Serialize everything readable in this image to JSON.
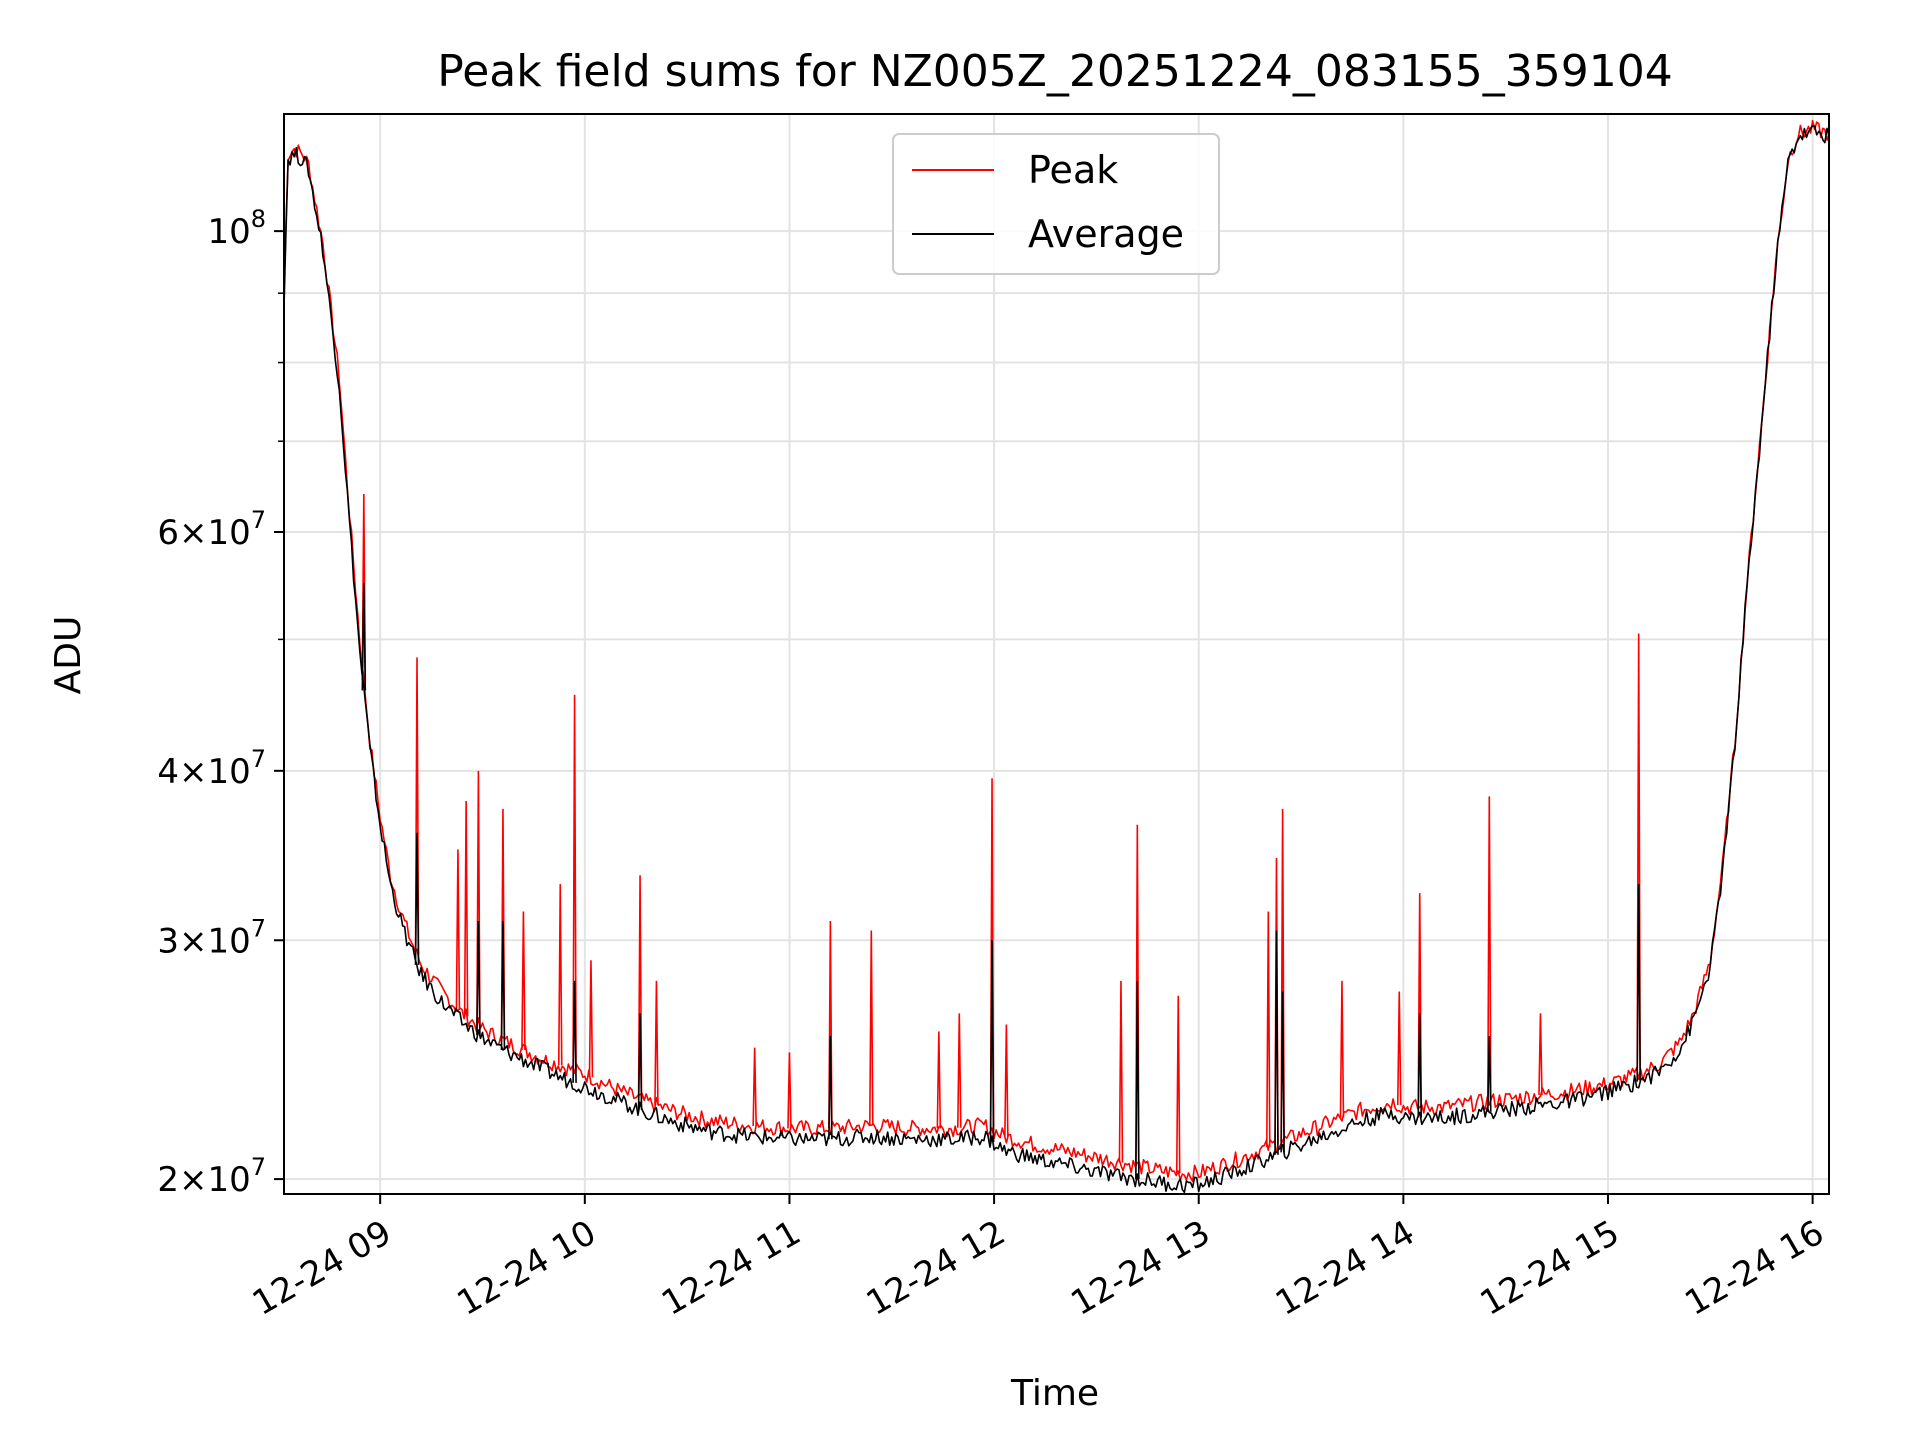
{
  "chart_data": {
    "type": "line",
    "title": "Peak field sums for NZ005Z_20251224_083155_359104",
    "xlabel": "Time",
    "ylabel": "ADU",
    "yscale": "log",
    "ylim": [
      19500000,
      122000000
    ],
    "xlim_hours": [
      8.53,
      16.08
    ],
    "grid": true,
    "legend_position": "top-center",
    "x_ticks": [
      {
        "value": 9,
        "label": "12-24 09"
      },
      {
        "value": 10,
        "label": "12-24 10"
      },
      {
        "value": 11,
        "label": "12-24 11"
      },
      {
        "value": 12,
        "label": "12-24 12"
      },
      {
        "value": 13,
        "label": "12-24 13"
      },
      {
        "value": 14,
        "label": "12-24 14"
      },
      {
        "value": 15,
        "label": "12-24 15"
      },
      {
        "value": 16,
        "label": "12-24 16"
      }
    ],
    "y_ticks": [
      {
        "value": 20000000,
        "base": "2",
        "exp": "7"
      },
      {
        "value": 30000000,
        "base": "3",
        "exp": "7"
      },
      {
        "value": 40000000,
        "base": "4",
        "exp": "7"
      },
      {
        "value": 60000000,
        "base": "6",
        "exp": "7"
      },
      {
        "value": 100000000,
        "base": "",
        "exp": "8"
      }
    ],
    "y_minor_ticks": [
      50000000,
      70000000,
      80000000,
      90000000
    ],
    "series": [
      {
        "name": "Peak",
        "color": "#ff0000",
        "x_hours": [
          8.53,
          8.55,
          8.58,
          8.62,
          8.65,
          8.72,
          8.8,
          8.85,
          8.9,
          8.95,
          9.0,
          9.05,
          9.1,
          9.15,
          9.2,
          9.3,
          9.4,
          9.5,
          9.6,
          9.7,
          9.8,
          9.9,
          10.0,
          10.15,
          10.3,
          10.45,
          10.6,
          10.8,
          11.0,
          11.2,
          11.4,
          11.6,
          11.8,
          11.95,
          12.05,
          12.2,
          12.4,
          12.6,
          12.8,
          12.9,
          13.0,
          13.2,
          13.4,
          13.6,
          13.8,
          13.95,
          14.0,
          14.2,
          14.4,
          14.6,
          14.8,
          15.0,
          15.15,
          15.25,
          15.35,
          15.42,
          15.5,
          15.56,
          15.62,
          15.68,
          15.75,
          15.82,
          15.88,
          15.93,
          16.0,
          16.08
        ],
        "y": [
          90000000,
          114000000,
          115000000,
          114000000,
          112000000,
          98000000,
          78000000,
          62000000,
          50000000,
          42000000,
          37000000,
          33500000,
          31500000,
          30000000,
          28800000,
          27500000,
          26500000,
          25800000,
          25300000,
          24900000,
          24500000,
          24200000,
          23900000,
          23300000,
          22800000,
          22400000,
          22100000,
          21900000,
          21800000,
          21800000,
          21900000,
          21800000,
          21800000,
          21900000,
          21500000,
          21200000,
          20900000,
          20600000,
          20300000,
          20200000,
          20200000,
          20700000,
          21300000,
          21900000,
          22500000,
          22800000,
          22600000,
          22600000,
          22800000,
          23000000,
          23200000,
          23500000,
          23900000,
          24300000,
          25200000,
          26500000,
          29000000,
          34000000,
          42000000,
          55000000,
          72000000,
          95000000,
          113000000,
          118000000,
          119000000,
          118000000
        ],
        "spikes": [
          [
            8.92,
            64000000
          ],
          [
            9.18,
            48500000
          ],
          [
            9.38,
            35000000
          ],
          [
            9.42,
            38000000
          ],
          [
            9.48,
            40000000
          ],
          [
            9.6,
            37500000
          ],
          [
            9.7,
            31500000
          ],
          [
            9.88,
            33000000
          ],
          [
            9.95,
            45500000
          ],
          [
            10.03,
            29000000
          ],
          [
            10.27,
            33500000
          ],
          [
            10.35,
            28000000
          ],
          [
            10.83,
            25000000
          ],
          [
            11.0,
            24800000
          ],
          [
            11.2,
            31000000
          ],
          [
            11.4,
            30500000
          ],
          [
            11.73,
            25700000
          ],
          [
            11.83,
            26500000
          ],
          [
            11.99,
            39500000
          ],
          [
            12.06,
            26000000
          ],
          [
            12.62,
            28000000
          ],
          [
            12.7,
            36500000
          ],
          [
            12.9,
            27300000
          ],
          [
            13.34,
            31500000
          ],
          [
            13.38,
            34500000
          ],
          [
            13.41,
            37500000
          ],
          [
            13.7,
            28000000
          ],
          [
            13.98,
            27500000
          ],
          [
            14.08,
            32500000
          ],
          [
            14.42,
            38300000
          ],
          [
            14.67,
            26500000
          ],
          [
            15.15,
            50500000
          ]
        ]
      },
      {
        "name": "Average",
        "color": "#000000",
        "x_hours": [
          8.53,
          8.55,
          8.58,
          8.62,
          8.65,
          8.72,
          8.8,
          8.85,
          8.9,
          8.95,
          9.0,
          9.05,
          9.1,
          9.15,
          9.2,
          9.3,
          9.4,
          9.5,
          9.6,
          9.7,
          9.8,
          9.9,
          10.0,
          10.15,
          10.3,
          10.45,
          10.6,
          10.8,
          11.0,
          11.2,
          11.4,
          11.6,
          11.8,
          11.95,
          12.05,
          12.2,
          12.4,
          12.6,
          12.8,
          12.9,
          13.0,
          13.2,
          13.4,
          13.6,
          13.8,
          13.95,
          14.0,
          14.2,
          14.4,
          14.6,
          14.8,
          15.0,
          15.15,
          15.25,
          15.35,
          15.42,
          15.5,
          15.56,
          15.62,
          15.68,
          15.75,
          15.82,
          15.88,
          15.93,
          16.0,
          16.08
        ],
        "y": [
          89000000,
          113000000,
          114000000,
          113000000,
          111000000,
          97000000,
          77000000,
          61000000,
          49000000,
          41500000,
          36500000,
          33000000,
          31000000,
          29500000,
          28300000,
          27000000,
          26100000,
          25400000,
          24900000,
          24500000,
          24100000,
          23700000,
          23400000,
          22900000,
          22400000,
          22000000,
          21700000,
          21500000,
          21400000,
          21400000,
          21500000,
          21400000,
          21400000,
          21500000,
          21000000,
          20700000,
          20400000,
          20100000,
          19900000,
          19800000,
          19800000,
          20300000,
          20900000,
          21500000,
          22100000,
          22400000,
          22200000,
          22200000,
          22400000,
          22600000,
          22800000,
          23200000,
          23600000,
          24000000,
          24900000,
          26200000,
          28700000,
          33700000,
          41700000,
          54700000,
          71700000,
          94700000,
          112500000,
          117500000,
          118500000,
          117500000
        ],
        "spikes": [
          [
            8.92,
            55000000
          ],
          [
            9.18,
            36000000
          ],
          [
            9.48,
            31000000
          ],
          [
            9.6,
            31000000
          ],
          [
            9.95,
            28000000
          ],
          [
            10.27,
            26500000
          ],
          [
            11.2,
            25500000
          ],
          [
            11.99,
            30000000
          ],
          [
            12.7,
            28000000
          ],
          [
            13.38,
            30500000
          ],
          [
            13.41,
            27500000
          ],
          [
            14.08,
            26500000
          ],
          [
            14.42,
            25500000
          ],
          [
            15.15,
            33000000
          ]
        ]
      }
    ]
  }
}
